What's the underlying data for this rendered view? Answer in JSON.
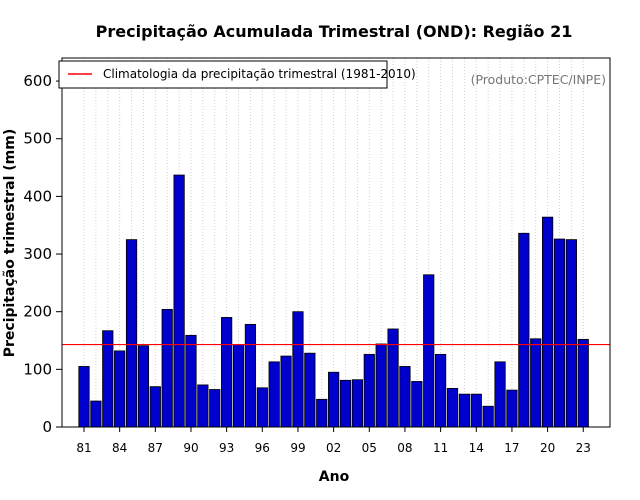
{
  "chart_data": {
    "type": "bar",
    "title": "Precipitação Acumulada Trimestral (OND): Região 21",
    "xlabel": "Ano",
    "ylabel": "Precipitação trimestral (mm)",
    "ylim": [
      0,
      640
    ],
    "yticks": [
      0,
      100,
      200,
      300,
      400,
      500,
      600
    ],
    "grid": "vertical dotted",
    "legend_position": "top-left",
    "credit": "(Produto:CPTEC/INPE)",
    "categories": [
      "1981",
      "1982",
      "1983",
      "1984",
      "1985",
      "1986",
      "1987",
      "1988",
      "1989",
      "1990",
      "1991",
      "1992",
      "1993",
      "1994",
      "1995",
      "1996",
      "1997",
      "1998",
      "1999",
      "2000",
      "2001",
      "2002",
      "2003",
      "2004",
      "2005",
      "2006",
      "2007",
      "2008",
      "2009",
      "2010",
      "2011",
      "2012",
      "2013",
      "2014",
      "2015",
      "2016",
      "2017",
      "2018",
      "2019",
      "2020",
      "2021",
      "2022",
      "2023"
    ],
    "xtick_labels": [
      "81",
      "84",
      "87",
      "90",
      "93",
      "96",
      "99",
      "02",
      "05",
      "08",
      "11",
      "14",
      "17",
      "20",
      "23"
    ],
    "series": [
      {
        "name": "Precipitação trimestral",
        "color": "#0000cc",
        "values": [
          105,
          45,
          167,
          132,
          325,
          141,
          70,
          204,
          437,
          159,
          73,
          65,
          190,
          143,
          178,
          68,
          113,
          123,
          200,
          128,
          48,
          95,
          81,
          82,
          126,
          144,
          170,
          105,
          79,
          264,
          126,
          67,
          57,
          57,
          36,
          113,
          64,
          336,
          153,
          364,
          326,
          325,
          152
        ]
      }
    ],
    "reference_line": {
      "label": "Climatologia da precipitação trimestral (1981-2010)",
      "value": 143,
      "color": "#ff0000"
    }
  }
}
